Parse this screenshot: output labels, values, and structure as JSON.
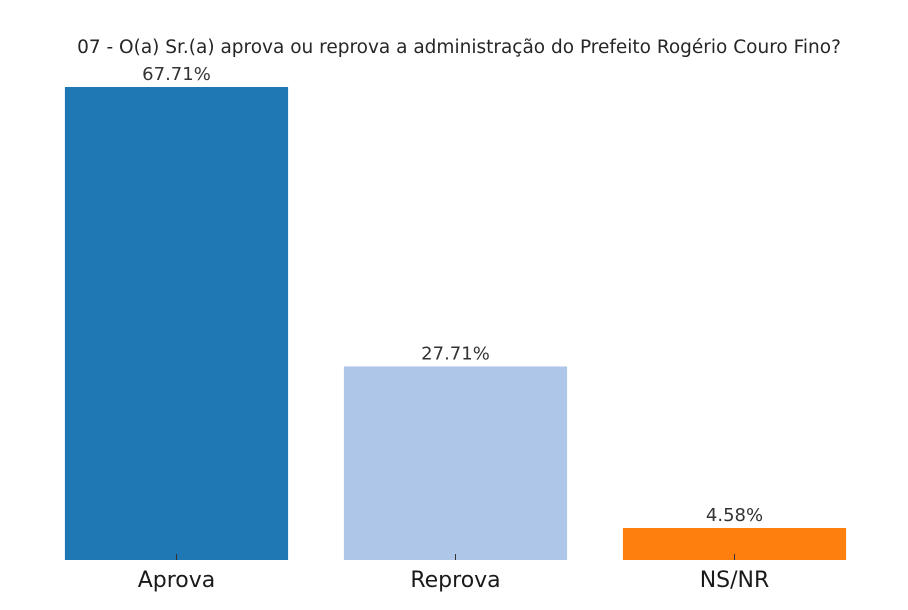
{
  "chart_data": {
    "type": "bar",
    "title": "07 - O(a) Sr.(a) aprova ou reprova a administração do Prefeito Rogério Couro Fino?",
    "xlabel": "",
    "ylabel": "",
    "categories": [
      "Aprova",
      "Reprova",
      "NS/NR"
    ],
    "values": [
      67.71,
      27.71,
      4.58
    ],
    "value_labels": [
      "67.71%",
      "27.71%",
      "4.58%"
    ],
    "colors": [
      "#1f77b4",
      "#aec7e8",
      "#ff7f0e"
    ],
    "ylim": [
      0,
      67.71
    ],
    "grid": false,
    "legend": "none",
    "y_axis_visible": false
  }
}
